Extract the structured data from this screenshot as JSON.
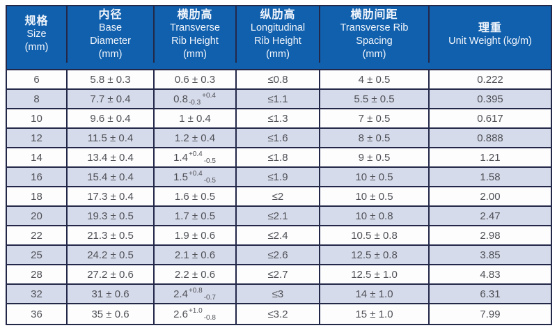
{
  "colors": {
    "header_blue": "#1160ad",
    "row_alt_lavender": "#d6dbeb",
    "border_navy": "#232849",
    "body_text": "#4f5156",
    "header_text": "#ffffff"
  },
  "table": {
    "columns": [
      {
        "id": "size",
        "cn": "规格",
        "en": [
          "Size",
          "(mm)"
        ]
      },
      {
        "id": "base_diameter",
        "cn": "内径",
        "en": [
          "Base",
          "Diameter",
          "(mm)"
        ]
      },
      {
        "id": "transverse_rib_height",
        "cn": "横肋高",
        "en": [
          "Transverse",
          "Rib Height",
          "(mm)"
        ]
      },
      {
        "id": "longitudinal_rib_height",
        "cn": "纵肋高",
        "en": [
          "Longitudinal",
          "Rib Height",
          "(mm)"
        ]
      },
      {
        "id": "transverse_rib_spacing",
        "cn": "横肋间距",
        "en": [
          "Transverse Rib",
          "Spacing",
          "(mm)"
        ]
      },
      {
        "id": "unit_weight",
        "cn": "理重",
        "en": [
          "Unit  Weight (kg/m)"
        ]
      }
    ],
    "rows": [
      [
        "6",
        "5.8 ± 0.3",
        "0.6 ± 0.3",
        "≤0.8",
        "4 ± 0.5",
        "0.222"
      ],
      [
        "8",
        "7.7 ± 0.4",
        [
          {
            "t": "0.8"
          },
          {
            "sub": "-0.3"
          },
          {
            "sup": "+0.4"
          }
        ],
        "≤1.1",
        "5.5 ± 0.5",
        "0.395"
      ],
      [
        "10",
        "9.6 ± 0.4",
        "1 ± 0.4",
        "≤1.3",
        "7 ± 0.5",
        "0.617"
      ],
      [
        "12",
        "11.5 ± 0.4",
        "1.2 ± 0.4",
        "≤1.6",
        "8 ± 0.5",
        "0.888"
      ],
      [
        "14",
        "13.4 ± 0.4",
        [
          {
            "t": "1.4"
          },
          {
            "sup": "+0.4"
          },
          {
            "sub": "-0.5"
          }
        ],
        "≤1.8",
        "9 ± 0.5",
        "1.21"
      ],
      [
        "16",
        "15.4 ± 0.4",
        [
          {
            "t": "1.5"
          },
          {
            "sup": "+0.4"
          },
          {
            "sub": "-0.5"
          }
        ],
        "≤1.9",
        "10 ± 0.5",
        "1.58"
      ],
      [
        "18",
        "17.3 ± 0.4",
        "1.6 ± 0.5",
        "≤2",
        "10 ± 0.5",
        "2.00"
      ],
      [
        "20",
        "19.3 ± 0.5",
        "1.7 ± 0.5",
        "≤2.1",
        "10 ± 0.8",
        "2.47"
      ],
      [
        "22",
        "21.3 ± 0.5",
        "1.9 ± 0.6",
        "≤2.4",
        "10.5 ± 0.8",
        "2.98"
      ],
      [
        "25",
        "24.2 ± 0.5",
        "2.1 ± 0.6",
        "≤2.6",
        "12.5 ± 0.8",
        "3.85"
      ],
      [
        "28",
        "27.2 ± 0.6",
        "2.2 ± 0.6",
        "≤2.7",
        "12.5 ± 1.0",
        "4.83"
      ],
      [
        "32",
        "31 ± 0.6",
        [
          {
            "t": "2.4"
          },
          {
            "sup": "+0.8"
          },
          {
            "sub": "-0.7"
          }
        ],
        "≤3",
        "14 ± 1.0",
        "6.31"
      ],
      [
        "36",
        "35 ± 0.6",
        [
          {
            "t": "2.6"
          },
          {
            "sup": "+1.0"
          },
          {
            "sub": "-0.8"
          }
        ],
        "≤3.2",
        "15 ± 1.0",
        "7.99"
      ]
    ],
    "alt_shaded_sizes": [
      "8",
      "12",
      "16",
      "20",
      "25",
      "32"
    ]
  }
}
